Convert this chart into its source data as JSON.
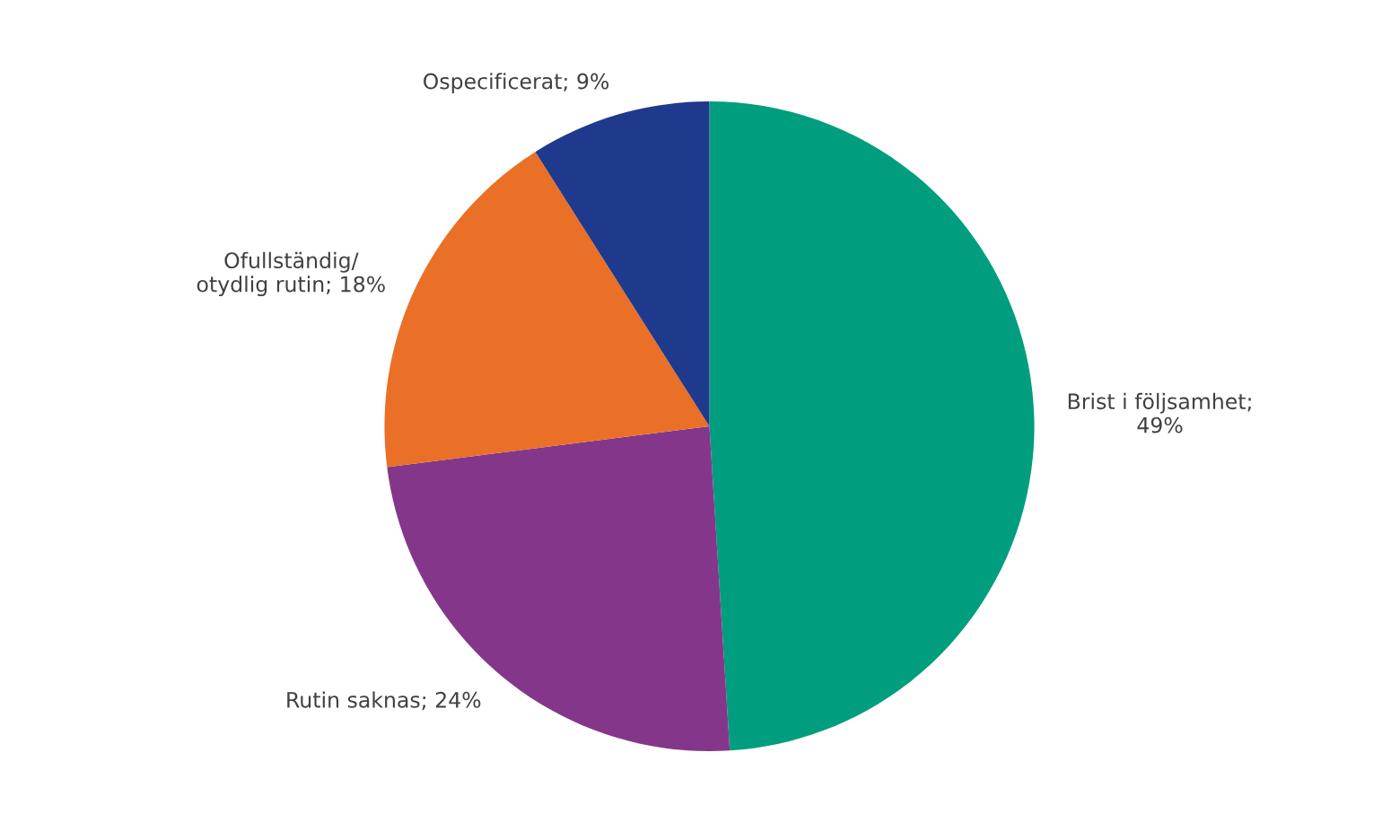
{
  "chart_data": {
    "type": "pie",
    "categories": [
      "Brist i följsamhet;\n49%",
      "Rutin saknas; 24%",
      "Ofullständig/\notydlig rutin; 18%",
      "Ospecificerat; 9%"
    ],
    "values": [
      49,
      24,
      18,
      9
    ],
    "colors": [
      "#009e7e",
      "#84378a",
      "#ea6f27",
      "#1f398c"
    ]
  }
}
